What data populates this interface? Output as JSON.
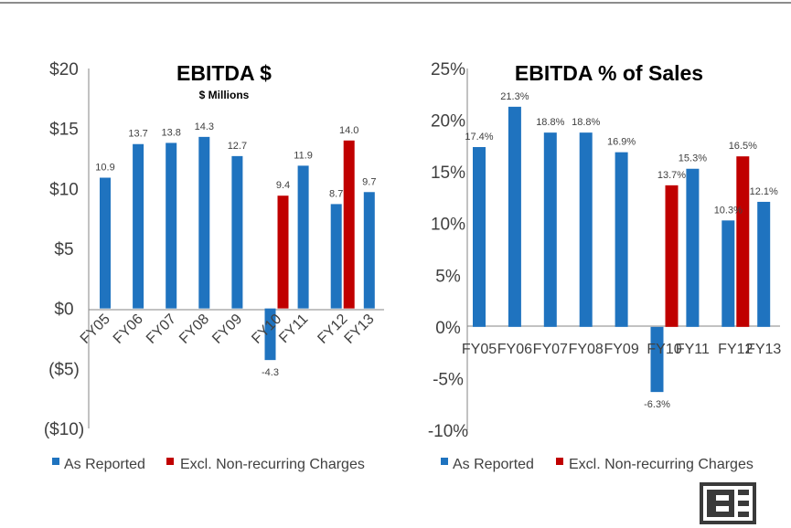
{
  "chart_data": [
    {
      "type": "bar",
      "title": "EBITDA $",
      "subtitle": "$ Millions",
      "categories": [
        "FY05",
        "FY06",
        "FY07",
        "FY08",
        "FY09",
        "FY10",
        "FY11",
        "FY12",
        "FY13"
      ],
      "ylim": [
        -10,
        20
      ],
      "yticks": [
        "$20",
        "$15",
        "$10",
        "$5",
        "$0",
        "($5)",
        "($10)"
      ],
      "ytick_values": [
        20,
        15,
        10,
        5,
        0,
        -5,
        -10
      ],
      "series": [
        {
          "name": "As Reported",
          "color": "#1f73bf",
          "values": [
            10.9,
            13.7,
            13.8,
            14.3,
            12.7,
            -4.3,
            11.9,
            8.7,
            9.7
          ],
          "labels": [
            "10.9",
            "13.7",
            "13.8",
            "14.3",
            "12.7",
            "-4.3",
            "11.9",
            "8.7",
            "9.7"
          ]
        },
        {
          "name": "Excl. Non-recurring Charges",
          "color": "#c00000",
          "values": [
            null,
            null,
            null,
            null,
            null,
            9.4,
            null,
            14.0,
            null
          ],
          "labels": [
            null,
            null,
            null,
            null,
            null,
            "9.4",
            null,
            "14.0",
            null
          ]
        }
      ],
      "legend": "bottom"
    },
    {
      "type": "bar",
      "title": "EBITDA % of Sales",
      "categories": [
        "FY05",
        "FY06",
        "FY07",
        "FY08",
        "FY09",
        "FY10",
        "FY11",
        "FY12",
        "FY13"
      ],
      "ylim": [
        -10,
        25
      ],
      "yticks": [
        "25%",
        "20%",
        "15%",
        "10%",
        "5%",
        "0%",
        "-5%",
        "-10%"
      ],
      "ytick_values": [
        25,
        20,
        15,
        10,
        5,
        0,
        -5,
        -10
      ],
      "series": [
        {
          "name": "As Reported",
          "color": "#1f73bf",
          "values": [
            17.4,
            21.3,
            18.8,
            18.8,
            16.9,
            -6.3,
            15.3,
            10.3,
            12.1
          ],
          "labels": [
            "17.4%",
            "21.3%",
            "18.8%",
            "18.8%",
            "16.9%",
            "-6.3%",
            "15.3%",
            "10.3%",
            "12.1%"
          ]
        },
        {
          "name": "Excl. Non-recurring Charges",
          "color": "#c00000",
          "values": [
            null,
            null,
            null,
            null,
            null,
            13.7,
            null,
            16.5,
            null
          ],
          "labels": [
            null,
            null,
            null,
            null,
            null,
            "13.7%",
            null,
            "16.5%",
            null
          ]
        }
      ],
      "legend": "bottom"
    }
  ]
}
